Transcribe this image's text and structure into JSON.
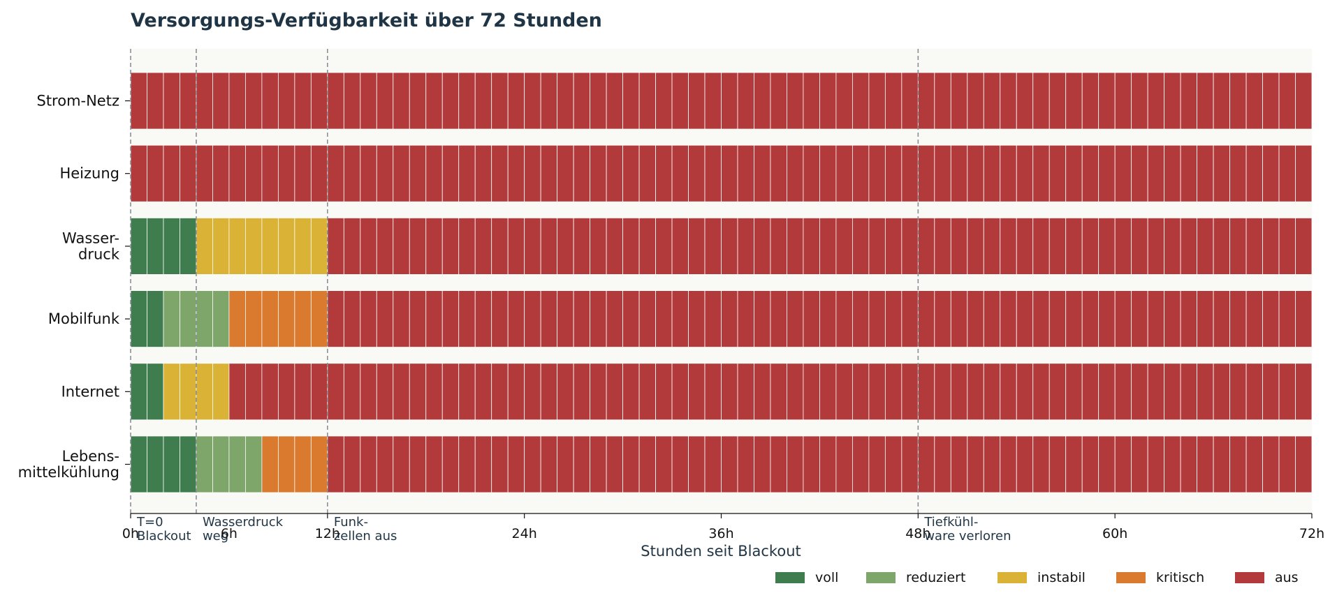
{
  "chart_data": {
    "type": "heatmap",
    "title": "Versorgungs-Verfügbarkeit über 72 Stunden",
    "xlabel": "Stunden seit Blackout",
    "ylabel": "",
    "xlim": [
      0,
      72
    ],
    "x_ticks": [
      0,
      12,
      24,
      36,
      48,
      60,
      72
    ],
    "x_tick_labels": [
      "0h",
      "12h",
      "24h",
      "36h",
      "48h",
      "60h",
      "72h"
    ],
    "extra_tick_label": "6h",
    "extra_tick_value": 6,
    "grid": false,
    "legend_position": "bottom-right",
    "status_levels": [
      {
        "key": "voll",
        "label": "voll",
        "color": "#3f7d4e"
      },
      {
        "key": "reduziert",
        "label": "reduziert",
        "color": "#7ea66a"
      },
      {
        "key": "instabil",
        "label": "instabil",
        "color": "#dab236"
      },
      {
        "key": "kritisch",
        "label": "kritisch",
        "color": "#d97a2f"
      },
      {
        "key": "aus",
        "label": "aus",
        "color": "#b23a3a"
      }
    ],
    "rows": [
      {
        "label": "Strom-Netz",
        "segments": [
          {
            "start": 0,
            "end": 72,
            "status": "aus"
          }
        ]
      },
      {
        "label": "Heizung",
        "segments": [
          {
            "start": 0,
            "end": 72,
            "status": "aus"
          }
        ]
      },
      {
        "label": "Wasser-\ndruck",
        "segments": [
          {
            "start": 0,
            "end": 4,
            "status": "voll"
          },
          {
            "start": 4,
            "end": 12,
            "status": "instabil"
          },
          {
            "start": 12,
            "end": 72,
            "status": "aus"
          }
        ]
      },
      {
        "label": "Mobilfunk",
        "segments": [
          {
            "start": 0,
            "end": 2,
            "status": "voll"
          },
          {
            "start": 2,
            "end": 6,
            "status": "reduziert"
          },
          {
            "start": 6,
            "end": 12,
            "status": "kritisch"
          },
          {
            "start": 12,
            "end": 72,
            "status": "aus"
          }
        ]
      },
      {
        "label": "Internet",
        "segments": [
          {
            "start": 0,
            "end": 2,
            "status": "voll"
          },
          {
            "start": 2,
            "end": 6,
            "status": "instabil"
          },
          {
            "start": 6,
            "end": 72,
            "status": "aus"
          }
        ]
      },
      {
        "label": "Lebens-\nmittelkühlung",
        "segments": [
          {
            "start": 0,
            "end": 4,
            "status": "voll"
          },
          {
            "start": 4,
            "end": 8,
            "status": "reduziert"
          },
          {
            "start": 8,
            "end": 12,
            "status": "kritisch"
          },
          {
            "start": 12,
            "end": 72,
            "status": "aus"
          }
        ]
      }
    ],
    "events": [
      {
        "x": 0,
        "label": "T=0\nBlackout"
      },
      {
        "x": 4,
        "label": "Wasserdruck\nweg"
      },
      {
        "x": 12,
        "label": "Funk-\nzellen aus"
      },
      {
        "x": 48,
        "label": "Tiefkühl-\nware verloren"
      }
    ],
    "colors": {
      "plot_background": "#f9f9f5",
      "event_line": "#8a9096",
      "hour_divider": "#ffffff"
    }
  }
}
